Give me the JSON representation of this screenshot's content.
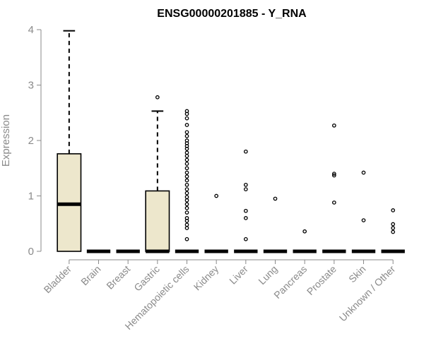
{
  "chart_data": {
    "type": "boxplot",
    "title": "ENSG00000201885 - Y_RNA",
    "xlabel": "",
    "ylabel": "Expression",
    "ylim": [
      0,
      4
    ],
    "yticks": [
      "0",
      "1",
      "2",
      "3",
      "4"
    ],
    "box_fill": "#ede7cc",
    "categories": [
      "Bladder",
      "Brain",
      "Breast",
      "Gastric",
      "Hematopoietic cells",
      "Kidney",
      "Liver",
      "Lung",
      "Pancreas",
      "Prostate",
      "Skin",
      "Unknown / Other"
    ],
    "boxes": [
      {
        "min": 0,
        "q1": 0,
        "median": 0.85,
        "q3": 1.76,
        "max": 3.98,
        "outliers": []
      },
      {
        "min": 0,
        "q1": 0,
        "median": 0,
        "q3": 0,
        "max": 0,
        "outliers": []
      },
      {
        "min": 0,
        "q1": 0,
        "median": 0,
        "q3": 0,
        "max": 0,
        "outliers": []
      },
      {
        "min": 0,
        "q1": 0,
        "median": 0,
        "q3": 1.09,
        "max": 2.53,
        "outliers": [
          2.78
        ]
      },
      {
        "min": 0,
        "q1": 0,
        "median": 0,
        "q3": 0,
        "max": 0,
        "outliers": [
          0.22,
          0.42,
          0.48,
          0.55,
          0.6,
          0.7,
          0.78,
          0.85,
          0.92,
          0.98,
          1.05,
          1.12,
          1.2,
          1.28,
          1.35,
          1.42,
          1.5,
          1.58,
          1.65,
          1.72,
          1.78,
          1.85,
          1.9,
          1.95,
          2.0,
          2.08,
          2.15,
          2.28,
          2.4,
          2.48,
          2.53
        ]
      },
      {
        "min": 0,
        "q1": 0,
        "median": 0,
        "q3": 0,
        "max": 0,
        "outliers": [
          1.0
        ]
      },
      {
        "min": 0,
        "q1": 0,
        "median": 0,
        "q3": 0,
        "max": 0,
        "outliers": [
          0.22,
          0.6,
          0.73,
          1.12,
          1.2,
          1.8
        ]
      },
      {
        "min": 0,
        "q1": 0,
        "median": 0,
        "q3": 0,
        "max": 0,
        "outliers": [
          0.95
        ]
      },
      {
        "min": 0,
        "q1": 0,
        "median": 0,
        "q3": 0,
        "max": 0,
        "outliers": [
          0.36
        ]
      },
      {
        "min": 0,
        "q1": 0,
        "median": 0,
        "q3": 0,
        "max": 0,
        "outliers": [
          0.88,
          1.37,
          1.4,
          2.27
        ]
      },
      {
        "min": 0,
        "q1": 0,
        "median": 0,
        "q3": 0,
        "max": 0,
        "outliers": [
          0.56,
          1.42
        ]
      },
      {
        "min": 0,
        "q1": 0,
        "median": 0,
        "q3": 0,
        "max": 0,
        "outliers": [
          0.35,
          0.42,
          0.49,
          0.74
        ]
      }
    ]
  }
}
